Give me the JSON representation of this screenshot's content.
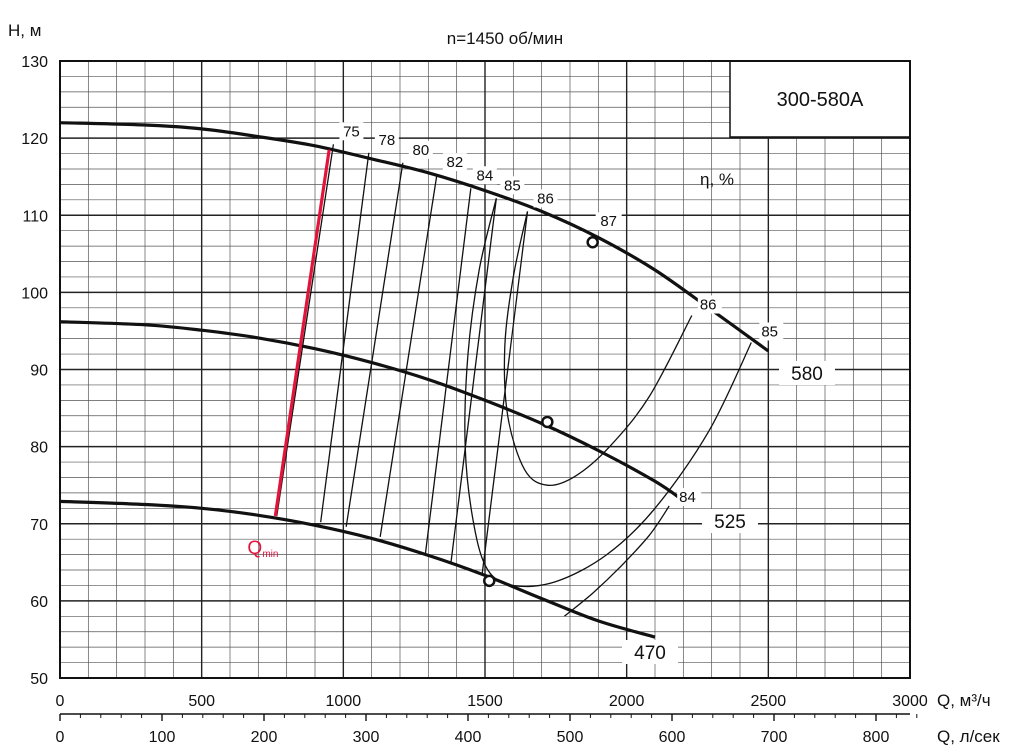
{
  "chart_data": {
    "type": "line",
    "title": "n=1450 об/мин",
    "model": "300-580A",
    "efficiency_label": "η, %",
    "ylabel": "H, м",
    "xlabel": "Q, м³/ч",
    "x2label": "Q, л/сек",
    "xlim": [
      0,
      3000
    ],
    "ylim": [
      50,
      130
    ],
    "x_ticks": [
      "0",
      "500",
      "1000",
      "1500",
      "2000",
      "2500",
      "3000"
    ],
    "y_ticks": [
      "50",
      "60",
      "70",
      "80",
      "90",
      "100",
      "110",
      "120",
      "130"
    ],
    "x2_ticks": [
      "0",
      "100",
      "200",
      "300",
      "400",
      "500",
      "600",
      "700",
      "800"
    ],
    "grid": true,
    "series": [
      {
        "name": "580",
        "x": [
          0,
          300,
          500,
          700,
          900,
          1100,
          1300,
          1500,
          1700,
          1900,
          2100,
          2300,
          2500
        ],
        "y": [
          122,
          121.7,
          121.2,
          120.2,
          119,
          117.3,
          115.5,
          113.2,
          110.5,
          107.1,
          102.9,
          97.7,
          92.4
        ]
      },
      {
        "name": "525",
        "x": [
          0,
          300,
          500,
          700,
          900,
          1100,
          1300,
          1500,
          1700,
          1900,
          2100,
          2200
        ],
        "y": [
          96.2,
          95.8,
          95.1,
          94.1,
          92.7,
          90.9,
          88.7,
          86.0,
          83.0,
          79.5,
          75.5,
          73.0
        ]
      },
      {
        "name": "470",
        "x": [
          0,
          300,
          500,
          700,
          900,
          1100,
          1300,
          1500,
          1700,
          1900,
          2100
        ],
        "y": [
          72.9,
          72.5,
          72.0,
          71.1,
          69.8,
          68.1,
          65.9,
          63.3,
          60.3,
          57.4,
          55.3
        ]
      }
    ],
    "bep_points": [
      {
        "x": 1880,
        "y": 106.5
      },
      {
        "x": 1720,
        "y": 83.2
      },
      {
        "x": 1515,
        "y": 62.6
      }
    ],
    "efficiency_lines": [
      {
        "label": "75",
        "x_top": 965,
        "y_top": 119.2,
        "x_bottom": 765,
        "y_bottom": 71.0
      },
      {
        "label": "78",
        "x_top": 1090,
        "y_top": 118.1,
        "x_bottom": 920,
        "y_bottom": 70.2
      },
      {
        "label": "80",
        "x_top": 1210,
        "y_top": 116.8,
        "x_bottom": 1010,
        "y_bottom": 69.6
      },
      {
        "label": "82",
        "x_top": 1330,
        "y_top": 115.2,
        "x_bottom": 1130,
        "y_bottom": 68.3
      },
      {
        "label": "84",
        "x_top": 1450,
        "y_top": 113.5,
        "x_bottom": 1290,
        "y_bottom": 66.2
      },
      {
        "label": "85",
        "x_top": 1540,
        "y_top": 112.2,
        "x_bottom": 1380,
        "y_bottom": 65.0
      },
      {
        "label": "86",
        "x_top": 1650,
        "y_top": 110.5,
        "x_bottom": 1490,
        "y_bottom": 63.5
      }
    ],
    "efficiency_loops": [
      {
        "label": "86",
        "x": [
          1650,
          1600,
          1570,
          1580,
          1640,
          1720,
          1820,
          1940,
          2080,
          2230
        ],
        "y": [
          110.5,
          102,
          93,
          84,
          77,
          75,
          76.2,
          80,
          86.5,
          97
        ]
      },
      {
        "label": "85",
        "x": [
          1540,
          1480,
          1440,
          1430,
          1460,
          1510,
          1600,
          1750,
          1930,
          2100,
          2290,
          2440
        ],
        "y": [
          112.2,
          103,
          92,
          80,
          70,
          64,
          62,
          62.5,
          66,
          72,
          82,
          93.5
        ]
      },
      {
        "label": "84",
        "x": [
          1780,
          1880,
          1980,
          2080,
          2150
        ],
        "y": [
          58,
          61,
          64.5,
          68.5,
          72.3
        ]
      }
    ],
    "qmin": {
      "label": "Q",
      "sub": "min",
      "x": [
        950,
        760
      ],
      "y": [
        118.5,
        71.0
      ],
      "color": "#e3143c"
    },
    "colors": {
      "curves": "#111111",
      "grid": "#222222",
      "qmin": "#e3143c"
    }
  }
}
